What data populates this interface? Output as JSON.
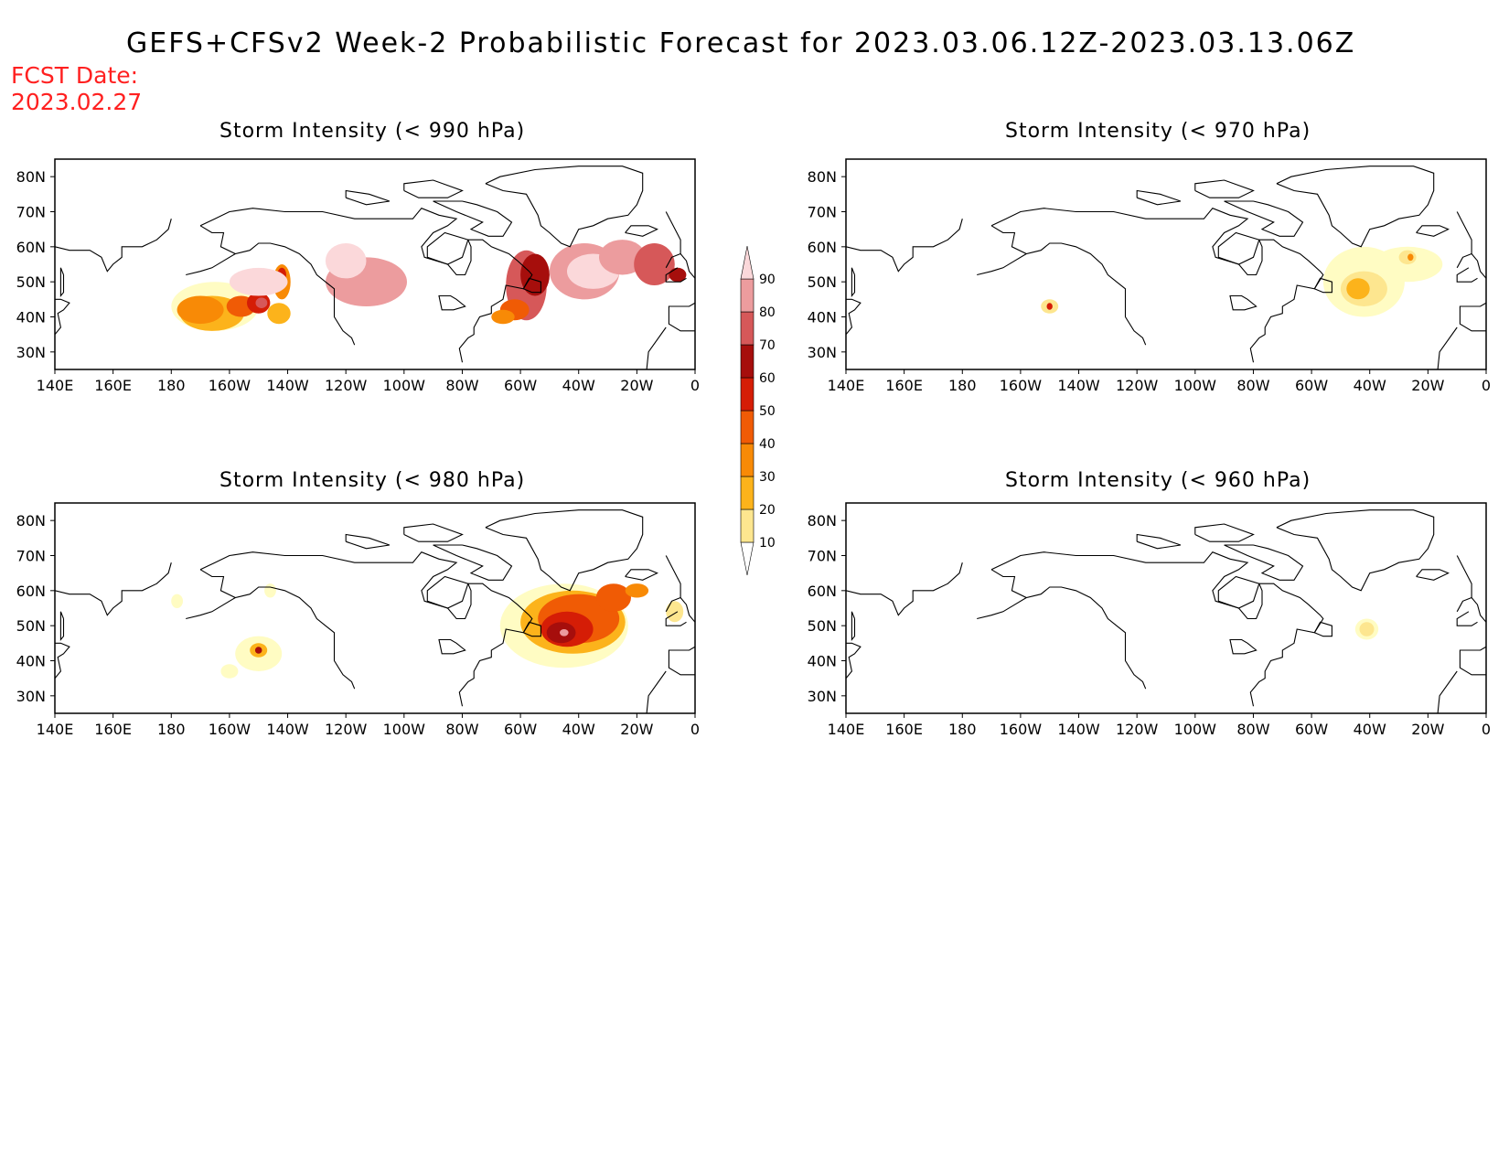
{
  "title": "GEFS+CFSv2 Week-2 Probabilistic Forecast for 2023.03.06.12Z-2023.03.13.06Z",
  "fcst_date": {
    "label": "FCST Date:",
    "value": "2023.02.27"
  },
  "colorbar": {
    "levels": [
      "10",
      "20",
      "30",
      "40",
      "50",
      "60",
      "70",
      "80",
      "90"
    ],
    "colors": [
      "#fffcc3",
      "#fde68f",
      "#fcb31b",
      "#f88a06",
      "#f05b05",
      "#d51d06",
      "#a60e0c",
      "#d65859",
      "#ec9c9e",
      "#fbd8da"
    ]
  },
  "panels": [
    {
      "id": "p990",
      "title": "Storm Intensity (< 990 hPa)",
      "lon_labels": [
        "140E",
        "160E",
        "180",
        "160W",
        "140W",
        "120W",
        "100W",
        "80W",
        "60W",
        "40W",
        "20W",
        "0"
      ],
      "lat_labels": [
        "80N",
        "70N",
        "60N",
        "50N",
        "40N",
        "30N"
      ],
      "blobs": [
        {
          "lon": 165,
          "lat": 43,
          "rx": 15,
          "ry": 7,
          "lvl": 0
        },
        {
          "lon": 143,
          "lat": 41,
          "rx": 4,
          "ry": 3,
          "lvl": 2
        },
        {
          "lon": 166,
          "lat": 41,
          "rx": 11,
          "ry": 5,
          "lvl": 2
        },
        {
          "lon": 170,
          "lat": 42,
          "rx": 8,
          "ry": 4,
          "lvl": 3
        },
        {
          "lon": 156,
          "lat": 43,
          "rx": 5,
          "ry": 3,
          "lvl": 4
        },
        {
          "lon": 150,
          "lat": 44,
          "rx": 4,
          "ry": 3,
          "lvl": 5
        },
        {
          "lon": 149,
          "lat": 44,
          "rx": 2,
          "ry": 1.5,
          "lvl": 7
        },
        {
          "lon": 142,
          "lat": 50,
          "rx": 3,
          "ry": 5,
          "lvl": 3
        },
        {
          "lon": 142,
          "lat": 52,
          "rx": 1.5,
          "ry": 2,
          "lvl": 5
        },
        {
          "lon": 113,
          "lat": 50,
          "rx": 14,
          "ry": 7,
          "lvl": 8
        },
        {
          "lon": 120,
          "lat": 56,
          "rx": 7,
          "ry": 5,
          "lvl": 9
        },
        {
          "lon": 150,
          "lat": 50,
          "rx": 10,
          "ry": 4,
          "lvl": 9
        },
        {
          "lon": 58,
          "lat": 49,
          "rx": 7,
          "ry": 10,
          "lvl": 7
        },
        {
          "lon": 55,
          "lat": 52,
          "rx": 5,
          "ry": 6,
          "lvl": 6
        },
        {
          "lon": 62,
          "lat": 42,
          "rx": 5,
          "ry": 3,
          "lvl": 4
        },
        {
          "lon": 66,
          "lat": 40,
          "rx": 4,
          "ry": 2,
          "lvl": 3
        },
        {
          "lon": 38,
          "lat": 53,
          "rx": 12,
          "ry": 8,
          "lvl": 8
        },
        {
          "lon": 35,
          "lat": 53,
          "rx": 9,
          "ry": 5,
          "lvl": 9
        },
        {
          "lon": 25,
          "lat": 57,
          "rx": 8,
          "ry": 5,
          "lvl": 8
        },
        {
          "lon": 14,
          "lat": 55,
          "rx": 7,
          "ry": 6,
          "lvl": 7
        },
        {
          "lon": 6,
          "lat": 52,
          "rx": 3,
          "ry": 2,
          "lvl": 6
        }
      ]
    },
    {
      "id": "p970",
      "title": "Storm Intensity (< 970 hPa)",
      "lon_labels": [
        "140E",
        "160E",
        "180",
        "160W",
        "140W",
        "120W",
        "100W",
        "80W",
        "60W",
        "40W",
        "20W",
        "0"
      ],
      "lat_labels": [
        "80N",
        "70N",
        "60N",
        "50N",
        "40N",
        "30N"
      ],
      "blobs": [
        {
          "lon": 150,
          "lat": 43,
          "rx": 3,
          "ry": 2,
          "lvl": 1
        },
        {
          "lon": 150,
          "lat": 43,
          "rx": 1,
          "ry": 1,
          "lvl": 5
        },
        {
          "lon": 42,
          "lat": 50,
          "rx": 14,
          "ry": 10,
          "lvl": 0
        },
        {
          "lon": 42,
          "lat": 48,
          "rx": 8,
          "ry": 5,
          "lvl": 1
        },
        {
          "lon": 44,
          "lat": 48,
          "rx": 4,
          "ry": 3,
          "lvl": 2
        },
        {
          "lon": 27,
          "lat": 55,
          "rx": 12,
          "ry": 5,
          "lvl": 0
        },
        {
          "lon": 27,
          "lat": 57,
          "rx": 3,
          "ry": 2,
          "lvl": 1
        },
        {
          "lon": 26,
          "lat": 57,
          "rx": 1,
          "ry": 1,
          "lvl": 3
        }
      ]
    },
    {
      "id": "p980",
      "title": "Storm Intensity (< 980 hPa)",
      "lon_labels": [
        "140E",
        "160E",
        "180",
        "160W",
        "140W",
        "120W",
        "100W",
        "80W",
        "60W",
        "40W",
        "20W",
        "0"
      ],
      "lat_labels": [
        "80N",
        "70N",
        "60N",
        "50N",
        "40N",
        "30N"
      ],
      "blobs": [
        {
          "lon": 150,
          "lat": 42,
          "rx": 8,
          "ry": 5,
          "lvl": 0
        },
        {
          "lon": 150,
          "lat": 43,
          "rx": 3,
          "ry": 2,
          "lvl": 2
        },
        {
          "lon": 150,
          "lat": 43,
          "rx": 1.2,
          "ry": 1,
          "lvl": 6
        },
        {
          "lon": 160,
          "lat": 37,
          "rx": 3,
          "ry": 2,
          "lvl": 0
        },
        {
          "lon": 178,
          "lat": 57,
          "rx": 2,
          "ry": 2,
          "lvl": 0
        },
        {
          "lon": 146,
          "lat": 60,
          "rx": 2,
          "ry": 2,
          "lvl": 0
        },
        {
          "lon": 45,
          "lat": 50,
          "rx": 22,
          "ry": 12,
          "lvl": 0
        },
        {
          "lon": 42,
          "lat": 51,
          "rx": 18,
          "ry": 9,
          "lvl": 2
        },
        {
          "lon": 40,
          "lat": 52,
          "rx": 14,
          "ry": 7,
          "lvl": 4
        },
        {
          "lon": 44,
          "lat": 49,
          "rx": 9,
          "ry": 5,
          "lvl": 5
        },
        {
          "lon": 46,
          "lat": 48,
          "rx": 5,
          "ry": 3,
          "lvl": 6
        },
        {
          "lon": 45,
          "lat": 48,
          "rx": 1.5,
          "ry": 1,
          "lvl": 8
        },
        {
          "lon": 28,
          "lat": 58,
          "rx": 6,
          "ry": 4,
          "lvl": 4
        },
        {
          "lon": 20,
          "lat": 60,
          "rx": 4,
          "ry": 2,
          "lvl": 3
        },
        {
          "lon": 7,
          "lat": 54,
          "rx": 3,
          "ry": 3,
          "lvl": 1
        }
      ]
    },
    {
      "id": "p960",
      "title": "Storm Intensity (< 960 hPa)",
      "lon_labels": [
        "140E",
        "160E",
        "180",
        "160W",
        "140W",
        "120W",
        "100W",
        "80W",
        "60W",
        "40W",
        "20W",
        "0"
      ],
      "lat_labels": [
        "80N",
        "70N",
        "60N",
        "50N",
        "40N",
        "30N"
      ],
      "blobs": [
        {
          "lon": 41,
          "lat": 49,
          "rx": 4,
          "ry": 3,
          "lvl": 0
        },
        {
          "lon": 41,
          "lat": 49,
          "rx": 2.5,
          "ry": 2,
          "lvl": 1
        }
      ]
    }
  ]
}
